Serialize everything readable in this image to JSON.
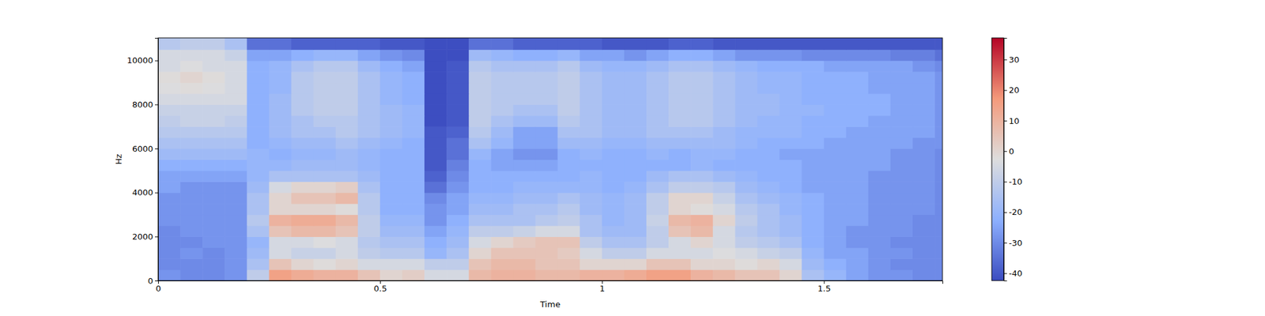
{
  "chart_data": {
    "type": "heatmap",
    "x_label": "Time",
    "y_label": "Hz",
    "xlim": [
      0,
      1.767
    ],
    "ylim": [
      0,
      11025
    ],
    "xticks": [
      0,
      0.5,
      1,
      1.5
    ],
    "yticks": [
      0,
      2000,
      4000,
      6000,
      8000,
      10000
    ],
    "x_edges": [
      0,
      0.05,
      0.1,
      0.15,
      0.2,
      0.25,
      0.3,
      0.35,
      0.4,
      0.45,
      0.5,
      0.55,
      0.6,
      0.65,
      0.7,
      0.75,
      0.8,
      0.85,
      0.9,
      0.95,
      1.0,
      1.05,
      1.1,
      1.15,
      1.2,
      1.25,
      1.3,
      1.35,
      1.4,
      1.45,
      1.5,
      1.55,
      1.6,
      1.65,
      1.7,
      1.75,
      1.767
    ],
    "y_edges": [
      0,
      500,
      1000,
      1500,
      2000,
      2500,
      3000,
      3500,
      4000,
      4500,
      5000,
      5500,
      6000,
      6500,
      7000,
      7500,
      8000,
      8500,
      9000,
      9500,
      10000,
      10500,
      11025
    ],
    "z": [
      [
        -28,
        -30,
        -30,
        -28,
        -10,
        15,
        12,
        10,
        10,
        5,
        0,
        2,
        -5,
        -5,
        8,
        10,
        10,
        8,
        8,
        10,
        10,
        12,
        15,
        15,
        10,
        8,
        5,
        5,
        0,
        -15,
        -20,
        -25,
        -28,
        -28,
        -30,
        -30
      ],
      [
        -30,
        -30,
        -30,
        -28,
        -15,
        5,
        0,
        -2,
        0,
        -5,
        -5,
        -5,
        -10,
        -10,
        5,
        8,
        8,
        5,
        5,
        0,
        0,
        0,
        5,
        5,
        0,
        0,
        -2,
        0,
        -5,
        -18,
        -22,
        -25,
        -28,
        -30,
        -30,
        -30
      ],
      [
        -30,
        -28,
        -30,
        -28,
        -18,
        -5,
        -8,
        -8,
        -5,
        -10,
        -12,
        -12,
        -20,
        -15,
        0,
        5,
        5,
        5,
        3,
        -5,
        -10,
        -10,
        -5,
        -5,
        -5,
        -3,
        -5,
        -8,
        -10,
        -20,
        -25,
        -25,
        -28,
        -28,
        -30,
        -30
      ],
      [
        -30,
        -30,
        -28,
        -28,
        -20,
        -5,
        -5,
        -3,
        -5,
        -12,
        -15,
        -15,
        -22,
        -18,
        -5,
        0,
        3,
        5,
        5,
        -10,
        -15,
        -15,
        -10,
        -5,
        0,
        -5,
        -10,
        -12,
        -15,
        -22,
        -25,
        -28,
        -28,
        -30,
        -30,
        -30
      ],
      [
        -30,
        -28,
        -28,
        -28,
        -15,
        5,
        8,
        8,
        5,
        -10,
        -18,
        -18,
        -25,
        -20,
        -10,
        -10,
        -8,
        -5,
        -5,
        -15,
        -18,
        -18,
        -10,
        5,
        8,
        -5,
        -12,
        -15,
        -18,
        -22,
        -25,
        -28,
        -28,
        -28,
        -30,
        -30
      ],
      [
        -28,
        -28,
        -28,
        -28,
        -12,
        10,
        12,
        12,
        8,
        -10,
        -20,
        -20,
        -28,
        -22,
        -15,
        -15,
        -15,
        -12,
        -10,
        -15,
        -20,
        -18,
        -8,
        8,
        10,
        0,
        -10,
        -15,
        -18,
        -22,
        -25,
        -25,
        -28,
        -28,
        -30,
        -30
      ],
      [
        -28,
        -28,
        -28,
        -28,
        -15,
        0,
        0,
        0,
        -2,
        -12,
        -22,
        -22,
        -28,
        -25,
        -18,
        -18,
        -15,
        -15,
        -12,
        -18,
        -20,
        -18,
        -10,
        0,
        -2,
        -5,
        -12,
        -15,
        -20,
        -22,
        -25,
        -25,
        -28,
        -28,
        -28,
        -30
      ],
      [
        -28,
        -28,
        -28,
        -28,
        -15,
        0,
        5,
        5,
        8,
        -12,
        -22,
        -22,
        -30,
        -25,
        -20,
        -20,
        -18,
        -18,
        -15,
        -18,
        -20,
        -18,
        -10,
        0,
        0,
        -8,
        -15,
        -18,
        -20,
        -22,
        -25,
        -25,
        -28,
        -28,
        -28,
        -30
      ],
      [
        -25,
        -28,
        -28,
        -28,
        -18,
        -5,
        0,
        0,
        2,
        -15,
        -22,
        -22,
        -35,
        -28,
        -22,
        -22,
        -20,
        -20,
        -20,
        -20,
        -22,
        -20,
        -15,
        -10,
        -10,
        -12,
        -18,
        -20,
        -22,
        -25,
        -25,
        -25,
        -28,
        -28,
        -28,
        -30
      ],
      [
        -25,
        -25,
        -25,
        -25,
        -20,
        -15,
        -15,
        -15,
        -15,
        -18,
        -22,
        -22,
        -38,
        -30,
        -22,
        -22,
        -22,
        -22,
        -22,
        -20,
        -22,
        -22,
        -18,
        -15,
        -15,
        -18,
        -20,
        -22,
        -22,
        -25,
        -25,
        -25,
        -28,
        -28,
        -28,
        -30
      ],
      [
        -22,
        -22,
        -22,
        -22,
        -20,
        -20,
        -18,
        -18,
        -18,
        -20,
        -22,
        -22,
        -40,
        -32,
        -22,
        -25,
        -25,
        -25,
        -22,
        -22,
        -22,
        -22,
        -22,
        -22,
        -20,
        -22,
        -22,
        -22,
        -22,
        -25,
        -25,
        -25,
        -25,
        -28,
        -28,
        -30
      ],
      [
        -18,
        -18,
        -18,
        -18,
        -20,
        -22,
        -20,
        -20,
        -18,
        -20,
        -22,
        -22,
        -40,
        -35,
        -20,
        -25,
        -28,
        -28,
        -22,
        -20,
        -22,
        -22,
        -20,
        -22,
        -20,
        -20,
        -22,
        -22,
        -25,
        -25,
        -25,
        -25,
        -25,
        -28,
        -28,
        -30
      ],
      [
        -15,
        -15,
        -15,
        -15,
        -22,
        -20,
        -18,
        -18,
        -15,
        -18,
        -20,
        -22,
        -40,
        -35,
        -15,
        -20,
        -25,
        -25,
        -18,
        -18,
        -20,
        -20,
        -18,
        -18,
        -18,
        -18,
        -20,
        -22,
        -22,
        -22,
        -25,
        -25,
        -25,
        -25,
        -28,
        -28
      ],
      [
        -12,
        -12,
        -12,
        -12,
        -22,
        -18,
        -15,
        -15,
        -12,
        -15,
        -18,
        -20,
        -40,
        -38,
        -12,
        -18,
        -25,
        -25,
        -15,
        -15,
        -18,
        -18,
        -15,
        -15,
        -15,
        -18,
        -20,
        -20,
        -20,
        -22,
        -22,
        -25,
        -25,
        -25,
        -25,
        -28
      ],
      [
        -10,
        -8,
        -8,
        -10,
        -22,
        -18,
        -15,
        -12,
        -12,
        -15,
        -18,
        -20,
        -42,
        -40,
        -10,
        -15,
        -18,
        -18,
        -12,
        -15,
        -18,
        -18,
        -15,
        -12,
        -12,
        -15,
        -18,
        -20,
        -20,
        -22,
        -22,
        -22,
        -25,
        -25,
        -25,
        -28
      ],
      [
        -8,
        -8,
        -8,
        -8,
        -22,
        -18,
        -12,
        -10,
        -10,
        -15,
        -18,
        -20,
        -42,
        -40,
        -10,
        -12,
        -15,
        -15,
        -10,
        -15,
        -18,
        -18,
        -15,
        -12,
        -12,
        -15,
        -18,
        -18,
        -20,
        -20,
        -22,
        -22,
        -22,
        -25,
        -25,
        -28
      ],
      [
        -5,
        -5,
        -5,
        -5,
        -22,
        -18,
        -12,
        -10,
        -10,
        -15,
        -20,
        -22,
        -42,
        -40,
        -10,
        -12,
        -12,
        -12,
        -10,
        -15,
        -18,
        -18,
        -15,
        -12,
        -12,
        -15,
        -18,
        -18,
        -20,
        -22,
        -22,
        -22,
        -22,
        -25,
        -25,
        -28
      ],
      [
        -3,
        -2,
        -3,
        -5,
        -22,
        -20,
        -12,
        -10,
        -10,
        -15,
        -20,
        -22,
        -42,
        -40,
        -10,
        -12,
        -12,
        -12,
        -10,
        -15,
        -18,
        -18,
        -15,
        -12,
        -12,
        -15,
        -18,
        -20,
        -20,
        -22,
        -22,
        -22,
        -25,
        -25,
        -25,
        -28
      ],
      [
        -2,
        0,
        -2,
        -5,
        -22,
        -20,
        -12,
        -10,
        -10,
        -15,
        -20,
        -22,
        -42,
        -40,
        -10,
        -12,
        -12,
        -12,
        -10,
        -15,
        -18,
        -18,
        -15,
        -12,
        -12,
        -15,
        -18,
        -20,
        -20,
        -22,
        -22,
        -22,
        -25,
        -25,
        -25,
        -28
      ],
      [
        -5,
        -3,
        -5,
        -5,
        -22,
        -20,
        -15,
        -12,
        -12,
        -18,
        -22,
        -25,
        -42,
        -40,
        -12,
        -15,
        -15,
        -15,
        -12,
        -18,
        -20,
        -20,
        -18,
        -15,
        -15,
        -18,
        -20,
        -22,
        -22,
        -22,
        -25,
        -25,
        -25,
        -25,
        -28,
        -30
      ],
      [
        -5,
        -5,
        -5,
        -8,
        -25,
        -25,
        -22,
        -20,
        -20,
        -25,
        -28,
        -30,
        -42,
        -42,
        -18,
        -20,
        -22,
        -22,
        -20,
        -25,
        -25,
        -28,
        -25,
        -22,
        -22,
        -25,
        -28,
        -28,
        -28,
        -30,
        -30,
        -30,
        -30,
        -32,
        -32,
        -35
      ],
      [
        -12,
        -10,
        -10,
        -15,
        -35,
        -35,
        -38,
        -38,
        -38,
        -38,
        -40,
        -40,
        -42,
        -42,
        -35,
        -35,
        -38,
        -38,
        -38,
        -38,
        -40,
        -40,
        -40,
        -38,
        -38,
        -40,
        -40,
        -40,
        -40,
        -40,
        -40,
        -40,
        -40,
        -40,
        -40,
        -40
      ]
    ],
    "colorbar": {
      "range": [
        -42.4,
        37.1
      ],
      "ticks": [
        -40,
        -30,
        -20,
        -10,
        0,
        10,
        20,
        30
      ]
    }
  }
}
